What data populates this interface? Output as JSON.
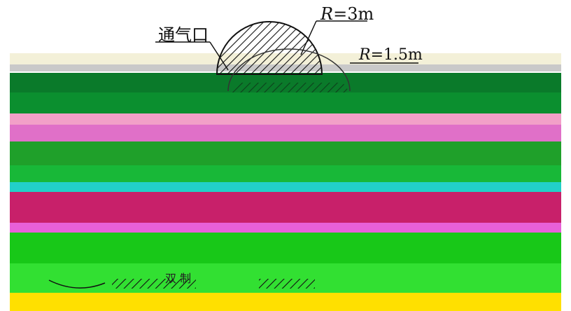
{
  "labels": {
    "vent": "通气口",
    "outer_radius_symbol": "R",
    "outer_radius_value": "=3m",
    "inner_radius_symbol": "R",
    "inner_radius_value": "=1.5m",
    "bottom_text": "双 制"
  },
  "colors": {
    "band_1": "#f3f0d8",
    "band_2": "#0a7a2a",
    "band_3": "#0b8f2f",
    "band_4": "#f2a0c8",
    "band_5": "#e070c8",
    "band_6": "#1fa02a",
    "band_7": "#18b838",
    "band_8": "#22d0c8",
    "band_9": "#c8206a",
    "band_10": "#e860d8",
    "band_11": "#18c818",
    "band_12": "#32e032",
    "band_13": "#ffe000"
  }
}
